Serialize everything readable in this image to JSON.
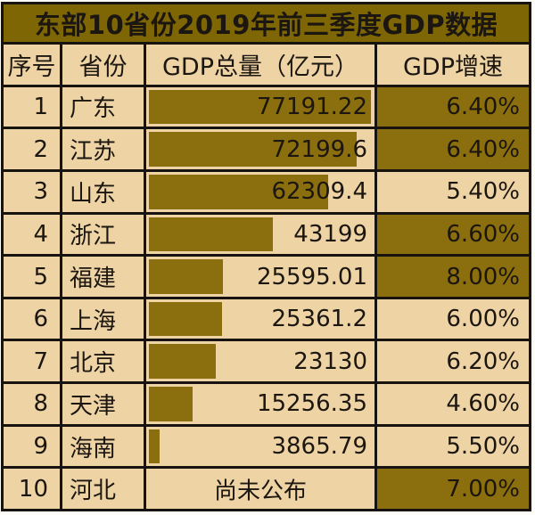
{
  "title": "东部10省份2019年前三季度GDP数据",
  "header": {
    "rank": "序号",
    "province": "省份",
    "gdp": "GDP总量（亿元）",
    "growth": "GDP增速"
  },
  "not_published_label": "尚未公布",
  "bar_axis_max": 77191.22,
  "rows": [
    {
      "rank": "1",
      "province": "广东",
      "gdp": "77191.22",
      "gdp_value": 77191.22,
      "growth": "6.40%",
      "growth_highlight": true
    },
    {
      "rank": "2",
      "province": "江苏",
      "gdp": "72199.6",
      "gdp_value": 72199.6,
      "growth": "6.40%",
      "growth_highlight": true
    },
    {
      "rank": "3",
      "province": "山东",
      "gdp": "62309.4",
      "gdp_value": 62309.4,
      "growth": "5.40%",
      "growth_highlight": false
    },
    {
      "rank": "4",
      "province": "浙江",
      "gdp": "43199",
      "gdp_value": 43199,
      "growth": "6.60%",
      "growth_highlight": true
    },
    {
      "rank": "5",
      "province": "福建",
      "gdp": "25595.01",
      "gdp_value": 25595.01,
      "growth": "8.00%",
      "growth_highlight": true
    },
    {
      "rank": "6",
      "province": "上海",
      "gdp": "25361.2",
      "gdp_value": 25361.2,
      "growth": "6.00%",
      "growth_highlight": false
    },
    {
      "rank": "7",
      "province": "北京",
      "gdp": "23130",
      "gdp_value": 23130,
      "growth": "6.20%",
      "growth_highlight": false
    },
    {
      "rank": "8",
      "province": "天津",
      "gdp": "15256.35",
      "gdp_value": 15256.35,
      "growth": "4.60%",
      "growth_highlight": false
    },
    {
      "rank": "9",
      "province": "海南",
      "gdp": "3865.79",
      "gdp_value": 3865.79,
      "growth": "5.50%",
      "growth_highlight": false
    },
    {
      "rank": "10",
      "province": "河北",
      "gdp": "尚未公布",
      "gdp_value": null,
      "growth": "7.00%",
      "growth_highlight": true
    }
  ],
  "colors": {
    "olive": "#8b6e0d",
    "title_bg": "#7e6605",
    "cream": "#eed3a4",
    "border": "#171310",
    "text": "#1b1610"
  },
  "chart_data": {
    "type": "table",
    "title": "东部10省份2019年前三季度GDP数据",
    "columns": [
      "序号",
      "省份",
      "GDP总量（亿元）",
      "GDP增速"
    ],
    "provinces": [
      "广东",
      "江苏",
      "山东",
      "浙江",
      "福建",
      "上海",
      "北京",
      "天津",
      "海南",
      "河北"
    ],
    "gdp_total_billion_yuan": [
      77191.22,
      72199.6,
      62309.4,
      43199,
      25595.01,
      25361.2,
      23130,
      15256.35,
      3865.79,
      null
    ],
    "gdp_labels": [
      "77191.22",
      "72199.6",
      "62309.4",
      "43199",
      "25595.01",
      "25361.2",
      "23130",
      "15256.35",
      "3865.79",
      "尚未公布"
    ],
    "growth_rate_pct": [
      6.4,
      6.4,
      5.4,
      6.6,
      8.0,
      6.0,
      6.2,
      4.6,
      5.5,
      7.0
    ],
    "growth_labels": [
      "6.40%",
      "6.40%",
      "5.40%",
      "6.60%",
      "8.00%",
      "6.00%",
      "6.20%",
      "4.60%",
      "5.50%",
      "7.00%"
    ],
    "bar_axis_max": 77191.22,
    "highlighted_growth_rows": [
      "广东",
      "江苏",
      "浙江",
      "福建",
      "河北"
    ],
    "notes": "in-cell data bars in GDP column, linear scale from 0 to max value; growth cells with olive fill mark higher growth rates"
  }
}
